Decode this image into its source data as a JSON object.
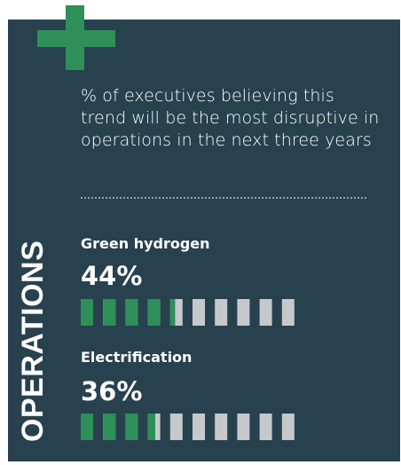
{
  "description": "% of executives believing this trend will be the most disruptive in operations in the next three years",
  "section_label": "OPERATIONS",
  "icon": "plus-icon",
  "colors": {
    "panel": "#27414e",
    "accent": "#2e8f58",
    "filled": "#2e8f58",
    "empty": "#c5c9cc",
    "text": "#ffffff"
  },
  "chart_data": {
    "type": "bar",
    "categories": [
      "Green hydrogen",
      "Electrification"
    ],
    "values": [
      44,
      36
    ],
    "value_labels": [
      "44%",
      "36%"
    ],
    "unit": "%",
    "ylim": [
      0,
      100
    ]
  }
}
